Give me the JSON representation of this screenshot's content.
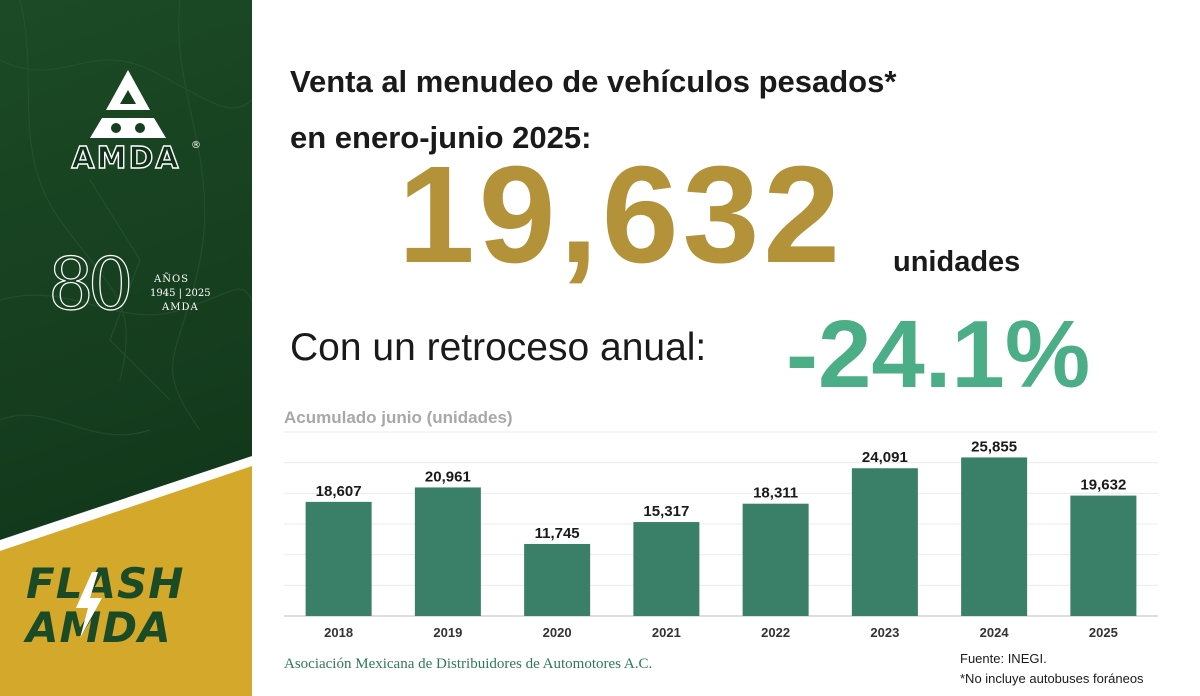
{
  "brand": {
    "wordmark": "AMDA",
    "registered": "®",
    "anniversary": {
      "number": "80",
      "label": "AÑOS",
      "years": "1945 | 2025",
      "name": "AMDA"
    },
    "flash_line1": "FLASH",
    "flash_line2": "AMDA",
    "colors": {
      "green_dark": "#163f1f",
      "yellow": "#d4a82a",
      "gold": "#b3923a",
      "teal": "#4cae86",
      "bar": "#3a7f68"
    }
  },
  "headline": {
    "line1": "Venta al menudeo de vehículos pesados*",
    "line2": "en enero-junio 2025:",
    "total": "19,632",
    "units": "unidades",
    "decline_label": "Con un retroceso anual:",
    "decline_value": "-24.1%"
  },
  "chart_data": {
    "type": "bar",
    "title": "Acumulado junio (unidades)",
    "categories": [
      "2018",
      "2019",
      "2020",
      "2021",
      "2022",
      "2023",
      "2024",
      "2025"
    ],
    "values": [
      18607,
      20961,
      11745,
      15317,
      18311,
      24091,
      25855,
      19632
    ],
    "value_labels": [
      "18,607",
      "20,961",
      "11,745",
      "15,317",
      "18,311",
      "24,091",
      "25,855",
      "19,632"
    ],
    "ylim": [
      0,
      30000
    ],
    "grid": true,
    "bar_color": "#3a7f68"
  },
  "footer": {
    "association": "Asociación Mexicana de Distribuidores de Automotores A.C.",
    "source": "Fuente: INEGI.",
    "note": "*No incluye autobuses foráneos"
  }
}
